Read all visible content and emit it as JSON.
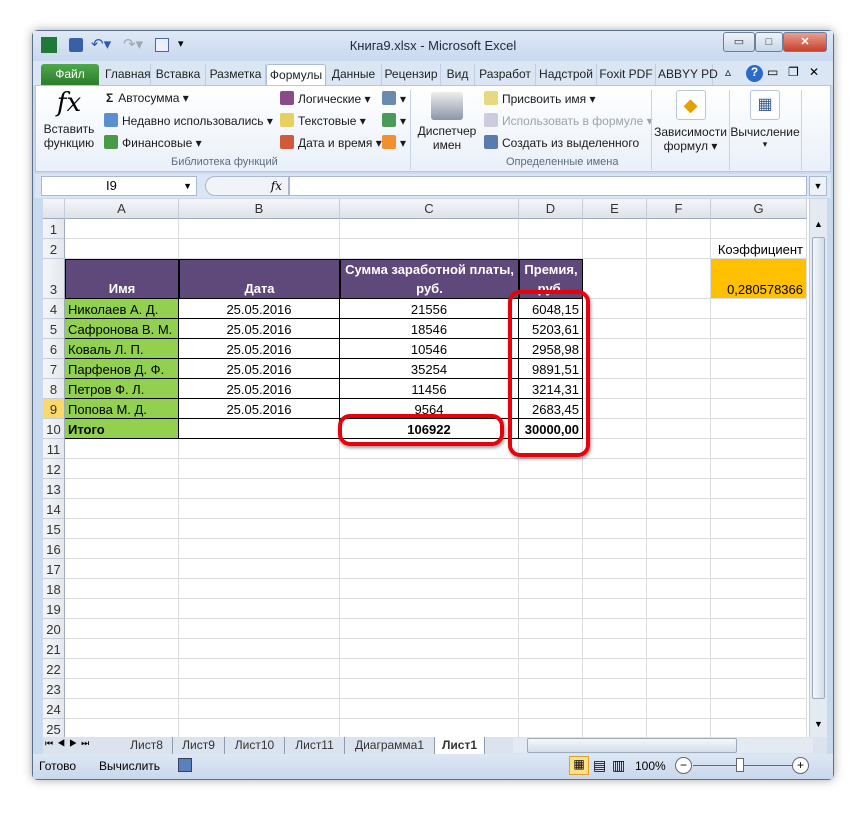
{
  "window": {
    "title": "Книга9.xlsx  -  Microsoft Excel",
    "controls": [
      "minimize",
      "maximize",
      "close"
    ]
  },
  "qat": {
    "icons": [
      "excel-icon",
      "save-icon",
      "undo-icon",
      "redo-icon",
      "form-icon",
      "customize-icon"
    ]
  },
  "tabs": [
    {
      "label": "Файл"
    },
    {
      "label": "Главная"
    },
    {
      "label": "Вставка"
    },
    {
      "label": "Разметка"
    },
    {
      "label": "Формулы",
      "active": true
    },
    {
      "label": "Данные"
    },
    {
      "label": "Рецензир"
    },
    {
      "label": "Вид"
    },
    {
      "label": "Разработ"
    },
    {
      "label": "Надстрой"
    },
    {
      "label": "Foxit PDF"
    },
    {
      "label": "ABBYY PD"
    }
  ],
  "ribbon": {
    "insert_function": {
      "line1": "Вставить",
      "line2": "функцию"
    },
    "library": {
      "label": "Библиотека функций",
      "items": [
        "Автосумма",
        "Недавно использовались",
        "Финансовые",
        "Логические",
        "Текстовые",
        "Дата и время"
      ]
    },
    "names": {
      "label": "Определенные имена",
      "manager1": "Диспетчер",
      "manager2": "имен",
      "items": [
        "Присвоить имя",
        "Использовать в формуле",
        "Создать из выделенного"
      ]
    },
    "dependencies": {
      "line1": "Зависимости",
      "line2": "формул"
    },
    "calculation": {
      "label": "Вычисление"
    }
  },
  "formula_bar": {
    "name_box": "I9",
    "fx": "fx",
    "value": ""
  },
  "columns": [
    "A",
    "B",
    "C",
    "D",
    "E",
    "F",
    "G"
  ],
  "rows": [
    "1",
    "2",
    "3",
    "4",
    "5",
    "6",
    "7",
    "8",
    "9",
    "10",
    "11",
    "12",
    "13",
    "14",
    "15",
    "16",
    "17",
    "18",
    "19",
    "20",
    "21",
    "22",
    "23",
    "24",
    "25"
  ],
  "table": {
    "headers": {
      "name": "Имя",
      "date": "Дата",
      "salary1": "Сумма заработной платы,",
      "salary2": "руб.",
      "bonus1": "Премия,",
      "bonus2": "руб."
    },
    "records": [
      {
        "name": "Николаев А. Д.",
        "date": "25.05.2016",
        "salary": "21556",
        "bonus": "6048,15"
      },
      {
        "name": "Сафронова В. М.",
        "date": "25.05.2016",
        "salary": "18546",
        "bonus": "5203,61"
      },
      {
        "name": "Коваль Л. П.",
        "date": "25.05.2016",
        "salary": "10546",
        "bonus": "2958,98"
      },
      {
        "name": "Парфенов Д. Ф.",
        "date": "25.05.2016",
        "salary": "35254",
        "bonus": "9891,51"
      },
      {
        "name": "Петров Ф. Л.",
        "date": "25.05.2016",
        "salary": "11456",
        "bonus": "3214,31"
      },
      {
        "name": "Попова М. Д.",
        "date": "25.05.2016",
        "salary": "9564",
        "bonus": "2683,45"
      }
    ],
    "total": {
      "label": "Итого",
      "salary": "106922",
      "bonus": "30000,00"
    }
  },
  "coefficient": {
    "label": "Коэффициент",
    "value": "0,280578366"
  },
  "colors": {
    "header": "#5f497a",
    "names": "#92d050",
    "coefficient": "#ffc000",
    "highlight": "#e8000b"
  },
  "sheets": [
    {
      "label": "Лист8"
    },
    {
      "label": "Лист9"
    },
    {
      "label": "Лист10"
    },
    {
      "label": "Лист11"
    },
    {
      "label": "Диаграмма1"
    },
    {
      "label": "Лист1",
      "active": true
    }
  ],
  "status": {
    "ready": "Готово",
    "calculate": "Вычислить",
    "zoom": "100%"
  }
}
